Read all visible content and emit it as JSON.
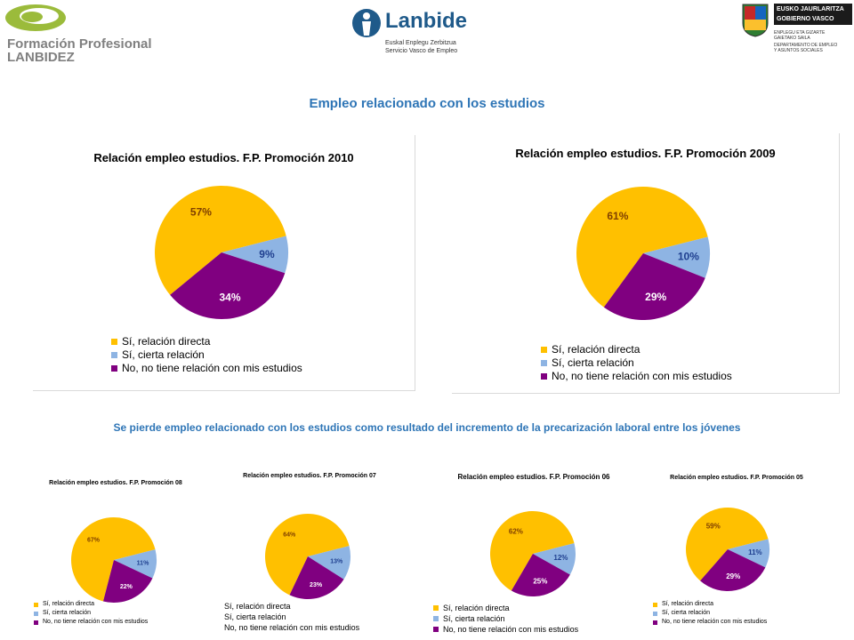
{
  "logos": {
    "fp": {
      "line1": "Formación Profesional",
      "line2": "LANBIDEZ"
    },
    "lanbide": {
      "name": "Lanbide",
      "sub1": "Euskal Enplegu Zerbitzua",
      "sub2": "Servicio Vasco de Empleo"
    },
    "gv": {
      "line1": "EUSKO JAURLARITZA",
      "line2": "GOBIERNO VASCO",
      "dept1": "ENPLEGU ETA GIZARTE",
      "dept2": "GAIETAKO SAILA",
      "dept3": "DEPARTAMENTO DE EMPLEO",
      "dept4": "Y ASUNTOS SOCIALES"
    }
  },
  "heading": "Empleo relacionado con los estudios",
  "subheading": "Se pierde empleo relacionado con los estudios como resultado del incremento de la precarización laboral entre los jóvenes",
  "colors": {
    "directa": "#FFC000",
    "cierta": "#8EB4E3",
    "no": "#800080",
    "heading": "#2E75B6"
  },
  "legend_labels": [
    "Sí, relación directa",
    "Sí, cierta relación",
    "No, no tiene relación con mis estudios"
  ],
  "chart_data": [
    {
      "type": "pie",
      "title": "Relación empleo estudios. F.P. Promoción 2010",
      "labels": [
        "Sí, relación directa",
        "Sí, cierta relación",
        "No, no tiene relación con mis estudios"
      ],
      "values": [
        57,
        9,
        34
      ],
      "data_labels": [
        "57%",
        "9%",
        "34%"
      ]
    },
    {
      "type": "pie",
      "title": "Relación empleo estudios. F.P. Promoción 2009",
      "labels": [
        "Sí, relación directa",
        "Sí, cierta relación",
        "No, no tiene relación con mis estudios"
      ],
      "values": [
        61,
        10,
        29
      ],
      "data_labels": [
        "61%",
        "10%",
        "29%"
      ]
    },
    {
      "type": "pie",
      "title": "Relación empleo estudios. F.P. Promoción 08",
      "labels": [
        "Sí, relación directa",
        "Sí, cierta relación",
        "No, no tiene relación con mis estudios"
      ],
      "values": [
        67,
        11,
        22
      ],
      "data_labels": [
        "67%",
        "11%",
        "22%"
      ]
    },
    {
      "type": "pie",
      "title": "Relación empleo estudios. F.P. Promoción 07",
      "labels": [
        "Sí, relación directa",
        "Sí, cierta relación",
        "No, no tiene relación con mis estudios"
      ],
      "values": [
        64,
        13,
        23
      ],
      "data_labels": [
        "64%",
        "13%",
        "23%"
      ]
    },
    {
      "type": "pie",
      "title": "Relación empleo estudios. F.P. Promoción 06",
      "labels": [
        "Sí, relación directa",
        "Sí, cierta relación",
        "No, no tiene relación con mis estudios"
      ],
      "values": [
        62,
        12,
        25
      ],
      "data_labels": [
        "62%",
        "12%",
        "25%"
      ]
    },
    {
      "type": "pie",
      "title": "Relación empleo estudios. F.P. Promoción 05",
      "labels": [
        "Sí, relación directa",
        "Sí, cierta relación",
        "No, no tiene relación con mis estudios"
      ],
      "values": [
        59,
        11,
        29
      ],
      "data_labels": [
        "59%",
        "11%",
        "29%"
      ]
    }
  ]
}
